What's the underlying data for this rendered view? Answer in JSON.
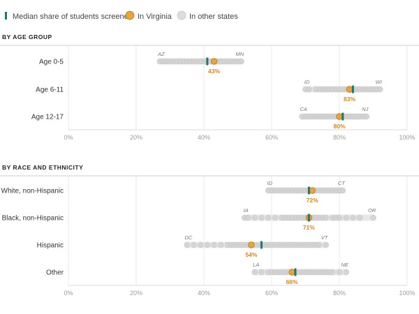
{
  "legend": {
    "median": "Median share of students screened",
    "virginia": "In Virginia",
    "other": "In other states"
  },
  "colors": {
    "median": "#1b7a74",
    "virginia": "#e8a33d",
    "virginia_text": "#d4871e",
    "dot": "#cfcfcf",
    "range": "#e8e8e8"
  },
  "chart_data": {
    "type": "scatter",
    "xlim": [
      0,
      100
    ],
    "x_ticks": [
      "0%",
      "20%",
      "40%",
      "60%",
      "80%",
      "100%"
    ],
    "sections": [
      {
        "title": "BY AGE GROUP",
        "rows": [
          {
            "label": "Age 0-5",
            "min": 27,
            "max": 51,
            "min_state": "AZ",
            "max_state": "MN",
            "median": 41,
            "virginia": 43,
            "virginia_label": "43%",
            "states": [
              27,
              28,
              29,
              30,
              31,
              32,
              33,
              34,
              35,
              36,
              37,
              38,
              39,
              40,
              41,
              42,
              44,
              45,
              46,
              47,
              48,
              49,
              50,
              51
            ]
          },
          {
            "label": "Age 6-11",
            "min": 70,
            "max": 92,
            "min_state": "ID",
            "max_state": "WI",
            "median": 84,
            "virginia": 83,
            "virginia_label": "83%",
            "states": [
              70,
              71,
              73,
              74,
              75,
              76,
              77,
              78,
              79,
              80,
              81,
              82,
              84,
              85,
              86,
              87,
              88,
              89,
              90,
              91,
              92
            ]
          },
          {
            "label": "Age 12-17",
            "min": 69,
            "max": 88,
            "min_state": "CA",
            "max_state": "NJ",
            "median": 81,
            "virginia": 80,
            "virginia_label": "80%",
            "states": [
              69,
              70,
              71,
              72,
              73,
              74,
              75,
              76,
              77,
              78,
              79,
              81,
              82,
              83,
              84,
              85,
              86,
              87,
              88
            ]
          }
        ]
      },
      {
        "title": "BY RACE AND ETHNICITY",
        "rows": [
          {
            "label": "White, non-Hispanic",
            "min": 59,
            "max": 81,
            "min_state": "ID",
            "max_state": "CT",
            "median": 71,
            "virginia": 72,
            "virginia_label": "72%",
            "states": [
              59,
              60,
              61,
              62,
              63,
              64,
              65,
              66,
              67,
              68,
              69,
              70,
              71,
              73,
              74,
              75,
              76,
              77,
              78,
              79,
              80,
              81
            ]
          },
          {
            "label": "Black, non-Hispanic",
            "min": 52,
            "max": 90,
            "min_state": "IA",
            "max_state": "OR",
            "median": 71,
            "virginia": 71,
            "virginia_label": "71%",
            "states": [
              52,
              53,
              55,
              57,
              59,
              61,
              63,
              64,
              65,
              66,
              67,
              68,
              69,
              70,
              72,
              73,
              74,
              75,
              76,
              78,
              79,
              80,
              82,
              84,
              86,
              90
            ]
          },
          {
            "label": "Hispanic",
            "min": 35,
            "max": 76,
            "min_state": "DC",
            "max_state": "VT",
            "median": 57,
            "virginia": 54,
            "virginia_label": "54%",
            "states": [
              35,
              37,
              39,
              41,
              43,
              45,
              47,
              48,
              49,
              50,
              51,
              52,
              53,
              55,
              56,
              57,
              58,
              59,
              60,
              61,
              62,
              63,
              64,
              65,
              66,
              67,
              68,
              69,
              70,
              71,
              72,
              73,
              74,
              76
            ]
          },
          {
            "label": "Other",
            "min": 55,
            "max": 82,
            "min_state": "LA",
            "max_state": "NE",
            "median": 67,
            "virginia": 66,
            "virginia_label": "66%",
            "states": [
              55,
              57,
              59,
              60,
              61,
              62,
              63,
              64,
              65,
              67,
              68,
              69,
              70,
              71,
              72,
              73,
              74,
              75,
              76,
              77,
              78,
              80,
              82
            ]
          }
        ]
      }
    ]
  }
}
